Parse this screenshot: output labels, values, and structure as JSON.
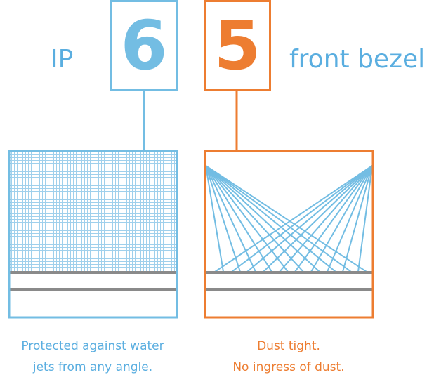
{
  "prefix_text": "IP",
  "suffix_text": "front bezel",
  "first_digit": "6",
  "second_digit": "5",
  "left_caption": [
    "Protected against water",
    "jets from any angle."
  ],
  "right_caption": [
    "Dust tight.",
    "No ingress of dust."
  ],
  "colors": {
    "blue": "#73bde3",
    "blue_text": "#5aaee0",
    "orange": "#ed7d31",
    "grey": "#8a8a8a"
  }
}
